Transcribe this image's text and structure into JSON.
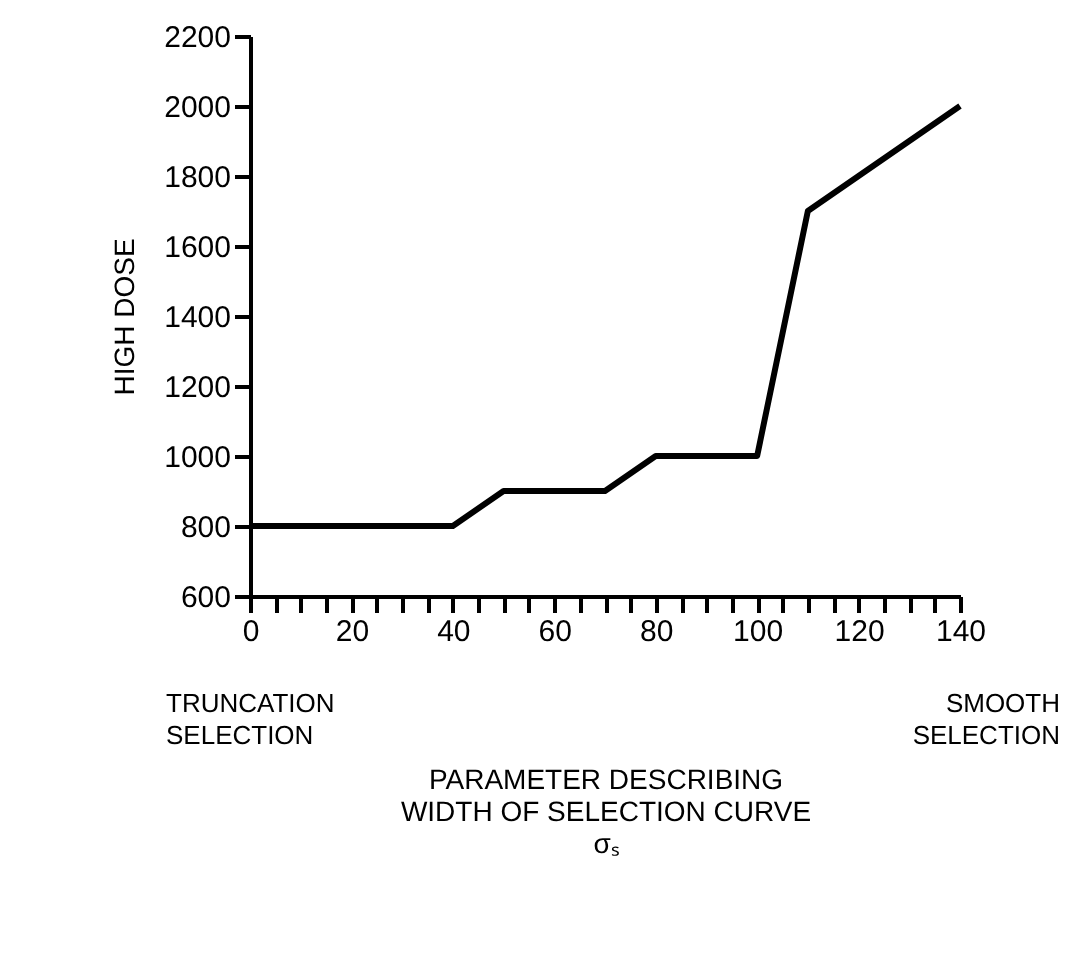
{
  "chart_data": {
    "type": "line",
    "ylabel": "HIGH DOSE",
    "xlabel": "PARAMETER DESCRIBING\nWIDTH OF SELECTION CURVE\nσₛ",
    "annotations": [
      "TRUNCATION\nSELECTION",
      "SMOOTH\nSELECTION"
    ],
    "x": [
      0,
      10,
      20,
      30,
      40,
      50,
      60,
      70,
      80,
      90,
      100,
      110,
      120,
      130,
      140
    ],
    "series": [
      {
        "color": "#000000",
        "values": [
          800,
          800,
          800,
          800,
          800,
          900,
          900,
          900,
          1000,
          1000,
          1000,
          1700,
          1800,
          1900,
          2000
        ]
      }
    ],
    "xlim": [
      0,
      140
    ],
    "ylim": [
      600,
      2200
    ],
    "xticks": [
      0,
      {
        "value": 5,
        "label": null
      },
      {
        "value": 10,
        "label": null
      },
      {
        "value": 15,
        "label": null
      },
      20,
      {
        "value": 25,
        "label": null
      },
      {
        "value": 30,
        "label": null
      },
      {
        "value": 35,
        "label": null
      },
      40,
      {
        "value": 45,
        "label": null
      },
      {
        "value": 50,
        "label": null
      },
      {
        "value": 55,
        "label": null
      },
      60,
      {
        "value": 65,
        "label": null
      },
      {
        "value": 70,
        "label": null
      },
      {
        "value": 75,
        "label": null
      },
      80,
      {
        "value": 85,
        "label": null
      },
      {
        "value": 90,
        "label": null
      },
      {
        "value": 95,
        "label": null
      },
      100,
      {
        "value": 105,
        "label": null
      },
      {
        "value": 110,
        "label": null
      },
      {
        "value": 115,
        "label": null
      },
      120,
      {
        "value": 125,
        "label": null
      },
      {
        "value": 130,
        "label": null
      },
      {
        "value": 135,
        "label": null
      },
      140
    ],
    "yticks": [
      600,
      800,
      1000,
      1200,
      1400,
      1600,
      1800,
      2000,
      2200
    ],
    "grid": false,
    "marker": "none",
    "line_style": "solid"
  }
}
